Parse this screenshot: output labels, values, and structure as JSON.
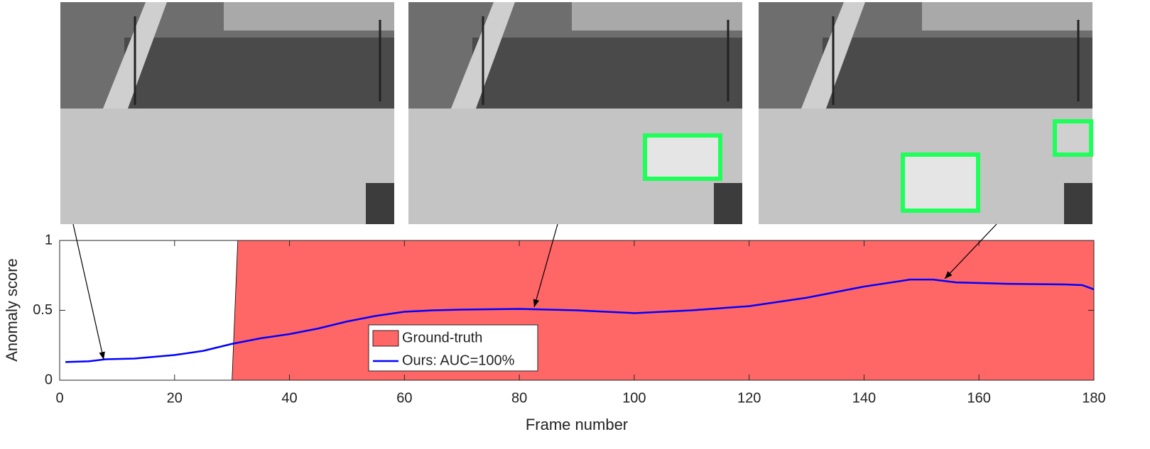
{
  "chart_data": {
    "type": "line",
    "xlabel": "Frame number",
    "ylabel": "Anomaly score",
    "xlim": [
      0,
      180
    ],
    "ylim": [
      0,
      1
    ],
    "xticks": [
      0,
      20,
      40,
      60,
      80,
      100,
      120,
      140,
      160,
      180
    ],
    "yticks": [
      0,
      0.5,
      1
    ],
    "series": [
      {
        "name": "Ground-truth",
        "color": "#ff6666",
        "style": "area",
        "x": [
          0,
          30,
          31,
          180
        ],
        "values": [
          0,
          0,
          1,
          1
        ]
      },
      {
        "name": "Ours: AUC=100%",
        "color": "#0000ff",
        "style": "line",
        "x": [
          1,
          5,
          8,
          13,
          20,
          25,
          30,
          35,
          40,
          45,
          50,
          55,
          60,
          65,
          70,
          80,
          90,
          100,
          110,
          120,
          130,
          140,
          148,
          152,
          156,
          165,
          175,
          178,
          180
        ],
        "values": [
          0.13,
          0.135,
          0.15,
          0.155,
          0.18,
          0.21,
          0.26,
          0.3,
          0.33,
          0.37,
          0.42,
          0.46,
          0.49,
          0.5,
          0.505,
          0.51,
          0.5,
          0.48,
          0.5,
          0.53,
          0.59,
          0.67,
          0.72,
          0.72,
          0.7,
          0.69,
          0.685,
          0.68,
          0.65
        ]
      }
    ]
  }
}
